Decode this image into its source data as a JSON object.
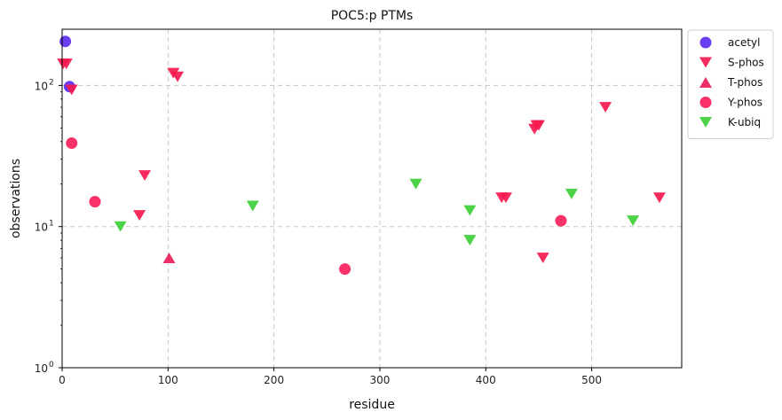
{
  "chart_data": {
    "type": "scatter",
    "title": "POC5:p PTMs",
    "xlabel": "residue",
    "ylabel": "observations",
    "xlim": [
      0,
      585
    ],
    "ylim": [
      1,
      250
    ],
    "yscale": "log",
    "xticks": [
      0,
      100,
      200,
      300,
      400,
      500
    ],
    "yticks": [
      {
        "value": 1,
        "label": "10",
        "exp": "0"
      },
      {
        "value": 10,
        "label": "10",
        "exp": "1"
      },
      {
        "value": 100,
        "label": "10",
        "exp": "2"
      }
    ],
    "grid": true,
    "legend_position": "outside-top-right",
    "series": [
      {
        "name": "acetyl",
        "marker": "circle",
        "color": "#5c2ef0",
        "points": [
          [
            3,
            205
          ],
          [
            7,
            98
          ]
        ]
      },
      {
        "name": "S-phos",
        "marker": "triangle-down",
        "color": "#f5194f",
        "points": [
          [
            1,
            142
          ],
          [
            4,
            142
          ],
          [
            9,
            93
          ],
          [
            78,
            23
          ],
          [
            73,
            12
          ],
          [
            105,
            122
          ],
          [
            109,
            115
          ],
          [
            415,
            16
          ],
          [
            419,
            16
          ],
          [
            446,
            49
          ],
          [
            448,
            52
          ],
          [
            450,
            52
          ],
          [
            454,
            6
          ],
          [
            513,
            70
          ],
          [
            564,
            16
          ]
        ]
      },
      {
        "name": "T-phos",
        "marker": "triangle-up",
        "color": "#e81e5a",
        "points": [
          [
            101,
            6
          ]
        ]
      },
      {
        "name": "Y-phos",
        "marker": "circle",
        "color": "#f7215b",
        "points": [
          [
            9,
            39
          ],
          [
            31,
            15
          ],
          [
            267,
            5
          ],
          [
            471,
            11
          ]
        ]
      },
      {
        "name": "K-ubiq",
        "marker": "triangle-down",
        "color": "#3ecf38",
        "points": [
          [
            55,
            10
          ],
          [
            180,
            14
          ],
          [
            334,
            20
          ],
          [
            385,
            13
          ],
          [
            385,
            8
          ],
          [
            481,
            17
          ],
          [
            539,
            11
          ]
        ]
      }
    ]
  }
}
